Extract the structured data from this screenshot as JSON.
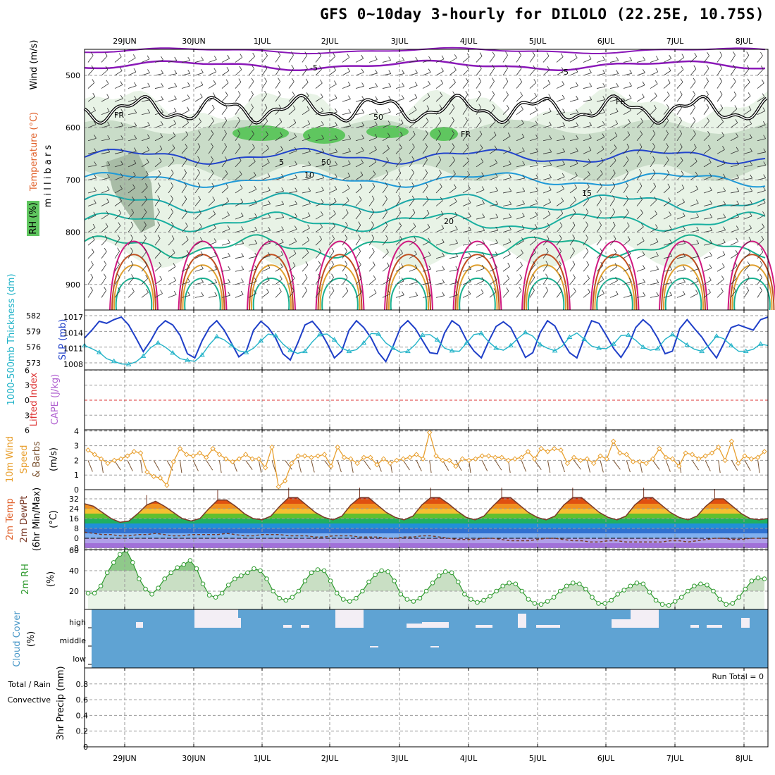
{
  "title": "GFS 0~10day 3-hourly for DILOLO (22.25E, 10.75S)",
  "dates": [
    "29JUN",
    "30JUN",
    "1JUL",
    "2JUL",
    "3JUL",
    "4JUL",
    "5JUL",
    "6JUL",
    "7JUL",
    "8JUL"
  ],
  "chart_data": [
    {
      "panel": "upper-air",
      "type": "heatmap",
      "ylabel": "millibars",
      "yticks": [
        500,
        600,
        700,
        800,
        900
      ],
      "legend": [
        "Wind (m/s)",
        "Temperature (°C)",
        "RH (%)"
      ],
      "contour_labels": [
        "-5",
        "5",
        "10",
        "15",
        "20",
        "50",
        "FR"
      ]
    },
    {
      "panel": "thickness-slp",
      "type": "line",
      "y1label": "1000-500mb Thickness (dm)",
      "y1ticks": [
        573,
        576,
        579,
        582
      ],
      "y2label": "SLP (mb)",
      "y2ticks": [
        1008,
        1011,
        1014,
        1017
      ],
      "series": [
        {
          "name": "SLP",
          "color": "#1f3fc8",
          "values": [
            1013,
            1014.5,
            1016.2,
            1015.8,
            1016.5,
            1017,
            1015.5,
            1013,
            1010.4,
            1012.5,
            1015,
            1016.3,
            1015.5,
            1013.5,
            1010,
            1009.2,
            1012.5,
            1015,
            1016.3,
            1014.5,
            1012,
            1009.4,
            1010.5,
            1014.5,
            1016.2,
            1015,
            1013,
            1010,
            1008.8,
            1012,
            1015.5,
            1016.2,
            1014.5,
            1012,
            1009.2,
            1010.5,
            1014.5,
            1016.3,
            1015,
            1013,
            1010.2,
            1008.5,
            1011.5,
            1015,
            1016.3,
            1014.8,
            1012.5,
            1010.2,
            1010,
            1014,
            1016.3,
            1015.3,
            1012.5,
            1010.5,
            1009.2,
            1012.4,
            1015.2,
            1016.1,
            1015,
            1012.2,
            1009.3,
            1010.2,
            1014,
            1016.3,
            1015.3,
            1012.5,
            1010.2,
            1009.2,
            1013,
            1016.3,
            1015.8,
            1013.5,
            1011,
            1009.3,
            1011.5,
            1015,
            1016.5,
            1015.3,
            1013,
            1010,
            1010.5,
            1014.8,
            1016.5,
            1014.8,
            1013.2,
            1011,
            1009.2,
            1012,
            1015,
            1015.5,
            1015,
            1014.5,
            1016.5,
            1017
          ]
        },
        {
          "name": "Thickness",
          "color": "#22b3c8",
          "values": [
            576.3,
            575.7,
            575,
            573.8,
            573.3,
            572.8,
            572.7,
            573.2,
            574.3,
            575.9,
            576.8,
            576,
            574.9,
            573.8,
            573.5,
            573.3,
            574.5,
            576.5,
            578,
            577.4,
            576.3,
            575.3,
            575,
            575.8,
            577.2,
            578.5,
            578.2,
            576.6,
            575.4,
            574.8,
            575.2,
            577,
            578.4,
            578.5,
            577.4,
            575.8,
            575.2,
            575.5,
            576.8,
            578.6,
            578.5,
            576.8,
            575.8,
            575,
            575.2,
            576.5,
            578.3,
            578.4,
            577.4,
            575.8,
            575.3,
            575.2,
            576.8,
            578.4,
            578.6,
            577,
            575.8,
            575.4,
            576.3,
            577.7,
            578.8,
            578.1,
            576.5,
            575.8,
            575.3,
            576.2,
            577.9,
            578.7,
            577.5,
            576.2,
            575.8,
            575.7,
            576.6,
            578.2,
            578.3,
            577.3,
            576,
            575.4,
            575.7,
            577.5,
            578.4,
            577.4,
            576.4,
            575.6,
            575.2,
            576.4,
            578.1,
            577.6,
            576.3,
            575.2,
            575.2,
            575.6,
            576.6,
            576.3
          ]
        }
      ]
    },
    {
      "panel": "stability",
      "type": "line",
      "y1label": "Lifted Index",
      "y1ticks": [
        -6,
        -3,
        0,
        3,
        6
      ],
      "y2label": "CAPE (J/kg)",
      "series": [
        {
          "name": "Lifted Index",
          "color": "#dd3333",
          "values": [
            0
          ]
        }
      ]
    },
    {
      "panel": "10m-wind",
      "type": "line",
      "ylabel": "10m Wind Speed & Barbs (m/s)",
      "yticks": [
        0,
        1,
        2,
        3,
        4
      ],
      "series": [
        {
          "name": "Speed",
          "color": "#e8a030",
          "values": [
            2.7,
            2.4,
            2.1,
            1.8,
            2,
            2.1,
            2.3,
            2.6,
            2.5,
            1.2,
            0.9,
            0.8,
            0.3,
            1.9,
            2.8,
            2.4,
            2.3,
            2.5,
            2.2,
            2.8,
            2.4,
            2.1,
            1.9,
            2.1,
            2.4,
            2.1,
            2.1,
            1.5,
            2.9,
            0.2,
            0.6,
            1.8,
            2.3,
            2.3,
            2.2,
            2.3,
            2.4,
            1.6,
            2.9,
            2.2,
            2.1,
            1.8,
            2.2,
            2.2,
            1.7,
            2.1,
            1.8,
            2,
            2.1,
            2.2,
            2.4,
            2.1,
            3.9,
            2.3,
            2,
            2,
            1.6,
            2.1,
            2,
            2.1,
            2.3,
            2.3,
            2.2,
            2.2,
            2,
            2.1,
            2.2,
            2.6,
            2.1,
            2.8,
            2.6,
            2.8,
            2.7,
            1.8,
            2.2,
            2,
            2.1,
            1.8,
            2.3,
            2.1,
            3.3,
            2.5,
            2.4,
            1.9,
            1.9,
            1.8,
            2.1,
            2.8,
            2.2,
            2.1,
            1.6,
            2.5,
            2.4,
            2.1,
            2.3,
            2.5,
            2.9,
            2,
            3.3,
            1.8,
            2.3,
            2.1,
            2.2,
            2.6
          ]
        }
      ]
    },
    {
      "panel": "2m-temperature",
      "type": "area",
      "ylabel": "2m Temp (°C)",
      "y2label": "2m DewPt (6hr Min/Max) (°C)",
      "yticks": [
        -8,
        0,
        8,
        16,
        24,
        32
      ],
      "series": [
        {
          "name": "2m Temp",
          "color": "#7a3a28",
          "values": [
            28,
            26,
            21,
            16,
            13,
            14,
            20,
            27,
            30,
            26,
            21,
            16,
            14,
            16,
            24,
            31,
            31,
            26,
            20,
            16,
            15,
            18,
            26,
            33,
            33,
            27,
            21,
            17,
            15,
            18,
            27,
            33,
            33,
            27,
            21,
            17,
            15,
            18,
            27,
            33,
            33,
            28,
            22,
            17,
            15,
            18,
            26,
            33,
            33,
            27,
            21,
            17,
            15,
            18,
            27,
            33,
            33,
            27,
            21,
            17,
            15,
            18,
            27,
            33,
            33,
            27,
            21,
            17,
            15,
            18,
            26,
            32,
            32,
            26,
            20,
            16,
            15,
            16
          ]
        },
        {
          "name": "2m DewPt",
          "color": "#7a3a28",
          "values": [
            5,
            4,
            3,
            3,
            2,
            2,
            3,
            3,
            4,
            3,
            2,
            2,
            3,
            3,
            3,
            3,
            4,
            3,
            2,
            2,
            3,
            3,
            3,
            2,
            2,
            2,
            1,
            1,
            2,
            2,
            2,
            1,
            1,
            1,
            0,
            0,
            1,
            1,
            2,
            2,
            1,
            0,
            -1,
            -1,
            -1,
            0,
            0,
            -1,
            -2,
            -2,
            -2,
            -1,
            0,
            0,
            -1,
            -2,
            -2,
            -3,
            -3,
            -2,
            -2,
            -3,
            -3,
            -3,
            -3,
            -3,
            -2,
            -2,
            -3,
            -2,
            -1,
            0,
            0,
            -1,
            -1,
            0,
            0,
            0
          ]
        }
      ]
    },
    {
      "panel": "2m-rh",
      "type": "area",
      "ylabel": "2m RH (%)",
      "yticks": [
        20,
        40,
        60
      ],
      "series": [
        {
          "name": "2m RH",
          "color": "#2e9a2e",
          "values": [
            18,
            18,
            25,
            38,
            48,
            56,
            60,
            48,
            32,
            22,
            17,
            23,
            32,
            38,
            43,
            46,
            50,
            42,
            27,
            16,
            14,
            18,
            26,
            32,
            35,
            38,
            42,
            40,
            32,
            20,
            13,
            11,
            14,
            20,
            30,
            38,
            41,
            40,
            30,
            18,
            12,
            10,
            13,
            20,
            29,
            36,
            40,
            39,
            30,
            17,
            12,
            10,
            13,
            20,
            28,
            35,
            39,
            38,
            29,
            17,
            12,
            9,
            11,
            15,
            20,
            25,
            28,
            27,
            20,
            12,
            8,
            7,
            10,
            14,
            20,
            25,
            28,
            27,
            22,
            14,
            8,
            8,
            11,
            17,
            21,
            25,
            28,
            27,
            19,
            11,
            7,
            6,
            10,
            14,
            20,
            25,
            27,
            26,
            20,
            12,
            7,
            8,
            14,
            22,
            30,
            33,
            32
          ]
        }
      ]
    },
    {
      "panel": "cloud-cover",
      "type": "bar",
      "ylabel": "Cloud Cover (%)",
      "levels": [
        "high",
        "middle",
        "low"
      ]
    },
    {
      "panel": "precipitation",
      "type": "bar",
      "ylabel": "3hr Precip (mm)",
      "legend": [
        "Total / Rain",
        "Convective"
      ],
      "yticks": [
        0,
        0.2,
        0.4,
        0.6,
        0.8
      ],
      "run_total": "Run Total = 0"
    }
  ]
}
